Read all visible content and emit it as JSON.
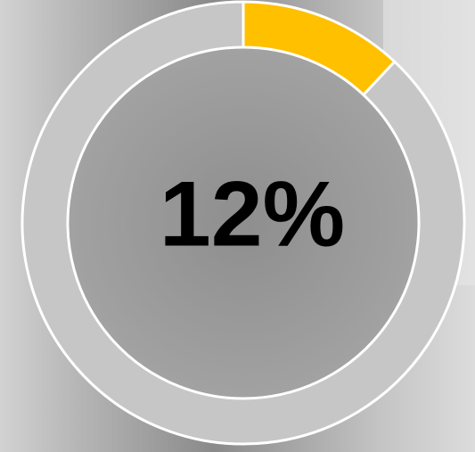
{
  "chart_data": {
    "type": "donut",
    "values": [
      12,
      88
    ],
    "value_labels": [
      "12%",
      null
    ],
    "colors": [
      "#ffc000",
      "#c6c6c6"
    ]
  }
}
